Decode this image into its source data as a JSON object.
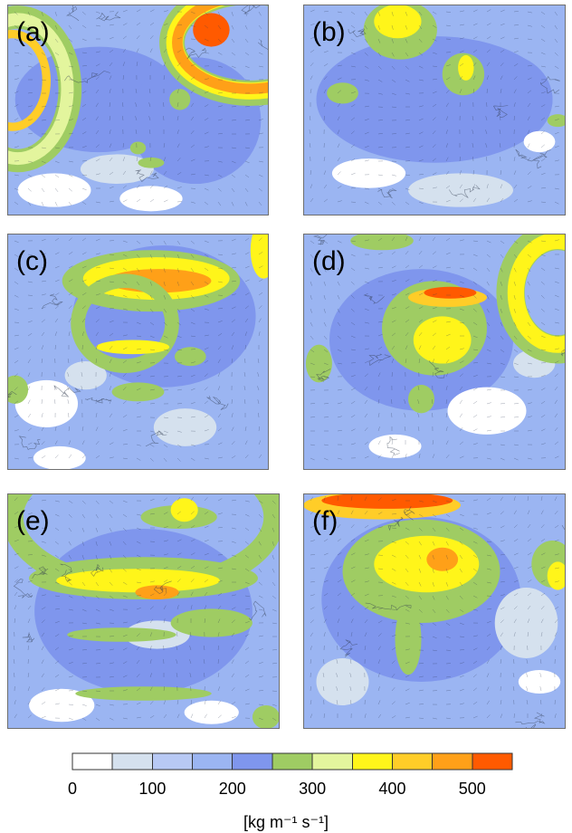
{
  "chart_data": {
    "type": "heatmap",
    "panels": [
      {
        "label": "(a)",
        "bands": [
          {
            "value": 150,
            "shape": "base"
          },
          {
            "value": 200,
            "shape": "blob",
            "cx": 0.35,
            "cy": 0.45,
            "rx": 0.32,
            "ry": 0.25
          },
          {
            "value": 225,
            "shape": "blob",
            "cx": 0.72,
            "cy": 0.55,
            "rx": 0.25,
            "ry": 0.3
          },
          {
            "value": 25,
            "shape": "blob",
            "cx": 0.18,
            "cy": 0.88,
            "rx": 0.14,
            "ry": 0.08
          },
          {
            "value": 25,
            "shape": "blob",
            "cx": 0.55,
            "cy": 0.92,
            "rx": 0.12,
            "ry": 0.06
          },
          {
            "value": 75,
            "shape": "blob",
            "cx": 0.42,
            "cy": 0.78,
            "rx": 0.14,
            "ry": 0.07
          },
          {
            "value": 275,
            "shape": "ring",
            "cx": 0.04,
            "cy": 0.4,
            "rx": 0.2,
            "ry": 0.34,
            "w": 0.11
          },
          {
            "value": 325,
            "shape": "ring",
            "cx": 0.04,
            "cy": 0.4,
            "rx": 0.19,
            "ry": 0.33,
            "w": 0.06
          },
          {
            "value": 425,
            "shape": "ring",
            "cx": 0.02,
            "cy": 0.36,
            "rx": 0.13,
            "ry": 0.22,
            "w": 0.04
          },
          {
            "value": 275,
            "shape": "ring",
            "cx": 0.93,
            "cy": 0.18,
            "rx": 0.3,
            "ry": 0.24,
            "w": 0.12
          },
          {
            "value": 375,
            "shape": "ring",
            "cx": 0.93,
            "cy": 0.18,
            "rx": 0.29,
            "ry": 0.23,
            "w": 0.08
          },
          {
            "value": 475,
            "shape": "ring",
            "cx": 0.93,
            "cy": 0.18,
            "rx": 0.28,
            "ry": 0.22,
            "w": 0.05
          },
          {
            "value": 525,
            "shape": "blob",
            "cx": 0.78,
            "cy": 0.12,
            "rx": 0.07,
            "ry": 0.08
          },
          {
            "value": 275,
            "shape": "blob",
            "cx": 0.66,
            "cy": 0.45,
            "rx": 0.04,
            "ry": 0.05
          },
          {
            "value": 275,
            "shape": "blob",
            "cx": 0.5,
            "cy": 0.68,
            "rx": 0.03,
            "ry": 0.03
          },
          {
            "value": 275,
            "shape": "blob",
            "cx": 0.55,
            "cy": 0.75,
            "rx": 0.05,
            "ry": 0.025
          }
        ]
      },
      {
        "label": "(b)",
        "bands": [
          {
            "value": 150,
            "shape": "base"
          },
          {
            "value": 200,
            "shape": "blob",
            "cx": 0.5,
            "cy": 0.45,
            "rx": 0.45,
            "ry": 0.3
          },
          {
            "value": 225,
            "shape": "blob",
            "cx": 0.75,
            "cy": 0.45,
            "rx": 0.2,
            "ry": 0.22
          },
          {
            "value": 25,
            "shape": "blob",
            "cx": 0.25,
            "cy": 0.8,
            "rx": 0.14,
            "ry": 0.07
          },
          {
            "value": 75,
            "shape": "blob",
            "cx": 0.6,
            "cy": 0.88,
            "rx": 0.2,
            "ry": 0.08
          },
          {
            "value": 25,
            "shape": "blob",
            "cx": 0.9,
            "cy": 0.65,
            "rx": 0.06,
            "ry": 0.05
          },
          {
            "value": 275,
            "shape": "blob",
            "cx": 0.37,
            "cy": 0.12,
            "rx": 0.14,
            "ry": 0.14
          },
          {
            "value": 375,
            "shape": "blob",
            "cx": 0.36,
            "cy": 0.08,
            "rx": 0.09,
            "ry": 0.08
          },
          {
            "value": 275,
            "shape": "blob",
            "cx": 0.61,
            "cy": 0.33,
            "rx": 0.08,
            "ry": 0.1
          },
          {
            "value": 375,
            "shape": "blob",
            "cx": 0.62,
            "cy": 0.3,
            "rx": 0.03,
            "ry": 0.06
          },
          {
            "value": 275,
            "shape": "blob",
            "cx": 0.15,
            "cy": 0.42,
            "rx": 0.06,
            "ry": 0.05
          },
          {
            "value": 275,
            "shape": "blob",
            "cx": 0.97,
            "cy": 0.55,
            "rx": 0.04,
            "ry": 0.03
          }
        ]
      },
      {
        "label": "(c)",
        "bands": [
          {
            "value": 175,
            "shape": "base"
          },
          {
            "value": 225,
            "shape": "blob",
            "cx": 0.6,
            "cy": 0.35,
            "rx": 0.35,
            "ry": 0.3
          },
          {
            "value": 25,
            "shape": "blob",
            "cx": 0.15,
            "cy": 0.72,
            "rx": 0.12,
            "ry": 0.1
          },
          {
            "value": 75,
            "shape": "blob",
            "cx": 0.3,
            "cy": 0.6,
            "rx": 0.08,
            "ry": 0.06
          },
          {
            "value": 25,
            "shape": "blob",
            "cx": 0.2,
            "cy": 0.95,
            "rx": 0.1,
            "ry": 0.05
          },
          {
            "value": 75,
            "shape": "blob",
            "cx": 0.68,
            "cy": 0.82,
            "rx": 0.12,
            "ry": 0.08
          },
          {
            "value": 275,
            "shape": "blob",
            "cx": 0.55,
            "cy": 0.2,
            "rx": 0.34,
            "ry": 0.13
          },
          {
            "value": 375,
            "shape": "blob",
            "cx": 0.57,
            "cy": 0.19,
            "rx": 0.28,
            "ry": 0.09
          },
          {
            "value": 475,
            "shape": "blob",
            "cx": 0.58,
            "cy": 0.2,
            "rx": 0.2,
            "ry": 0.05
          },
          {
            "value": 275,
            "shape": "ring",
            "cx": 0.45,
            "cy": 0.38,
            "rx": 0.18,
            "ry": 0.18,
            "w": 0.06
          },
          {
            "value": 375,
            "shape": "blob",
            "cx": 0.48,
            "cy": 0.48,
            "rx": 0.14,
            "ry": 0.03
          },
          {
            "value": 275,
            "shape": "blob",
            "cx": 0.7,
            "cy": 0.52,
            "rx": 0.06,
            "ry": 0.04
          },
          {
            "value": 275,
            "shape": "blob",
            "cx": 0.03,
            "cy": 0.66,
            "rx": 0.05,
            "ry": 0.06
          },
          {
            "value": 275,
            "shape": "blob",
            "cx": 0.5,
            "cy": 0.67,
            "rx": 0.1,
            "ry": 0.04
          },
          {
            "value": 375,
            "shape": "blob",
            "cx": 0.98,
            "cy": 0.07,
            "rx": 0.05,
            "ry": 0.12
          }
        ]
      },
      {
        "label": "(d)",
        "bands": [
          {
            "value": 150,
            "shape": "base"
          },
          {
            "value": 200,
            "shape": "blob",
            "cx": 0.45,
            "cy": 0.45,
            "rx": 0.35,
            "ry": 0.3
          },
          {
            "value": 25,
            "shape": "blob",
            "cx": 0.7,
            "cy": 0.75,
            "rx": 0.15,
            "ry": 0.1
          },
          {
            "value": 25,
            "shape": "blob",
            "cx": 0.35,
            "cy": 0.9,
            "rx": 0.1,
            "ry": 0.05
          },
          {
            "value": 75,
            "shape": "blob",
            "cx": 0.88,
            "cy": 0.55,
            "rx": 0.08,
            "ry": 0.06
          },
          {
            "value": 275,
            "shape": "blob",
            "cx": 0.5,
            "cy": 0.4,
            "rx": 0.2,
            "ry": 0.2
          },
          {
            "value": 375,
            "shape": "blob",
            "cx": 0.53,
            "cy": 0.45,
            "rx": 0.11,
            "ry": 0.1
          },
          {
            "value": 425,
            "shape": "blob",
            "cx": 0.55,
            "cy": 0.27,
            "rx": 0.15,
            "ry": 0.04
          },
          {
            "value": 525,
            "shape": "blob",
            "cx": 0.56,
            "cy": 0.25,
            "rx": 0.1,
            "ry": 0.025
          },
          {
            "value": 275,
            "shape": "ring",
            "cx": 0.97,
            "cy": 0.25,
            "rx": 0.18,
            "ry": 0.24,
            "w": 0.12
          },
          {
            "value": 375,
            "shape": "ring",
            "cx": 0.97,
            "cy": 0.25,
            "rx": 0.16,
            "ry": 0.22,
            "w": 0.07
          },
          {
            "value": 275,
            "shape": "blob",
            "cx": 0.06,
            "cy": 0.55,
            "rx": 0.05,
            "ry": 0.08
          },
          {
            "value": 275,
            "shape": "blob",
            "cx": 0.3,
            "cy": 0.03,
            "rx": 0.12,
            "ry": 0.04
          },
          {
            "value": 275,
            "shape": "blob",
            "cx": 0.45,
            "cy": 0.7,
            "rx": 0.05,
            "ry": 0.06
          }
        ]
      },
      {
        "label": "(e)",
        "bands": [
          {
            "value": 175,
            "shape": "base"
          },
          {
            "value": 225,
            "shape": "blob",
            "cx": 0.5,
            "cy": 0.5,
            "rx": 0.4,
            "ry": 0.35
          },
          {
            "value": 25,
            "shape": "blob",
            "cx": 0.2,
            "cy": 0.9,
            "rx": 0.12,
            "ry": 0.07
          },
          {
            "value": 75,
            "shape": "blob",
            "cx": 0.55,
            "cy": 0.6,
            "rx": 0.12,
            "ry": 0.06
          },
          {
            "value": 25,
            "shape": "blob",
            "cx": 0.75,
            "cy": 0.93,
            "rx": 0.1,
            "ry": 0.05
          },
          {
            "value": 275,
            "shape": "ring",
            "cx": 0.5,
            "cy": 0.1,
            "rx": 0.48,
            "ry": 0.3,
            "w": 0.09
          },
          {
            "value": 275,
            "shape": "blob",
            "cx": 0.5,
            "cy": 0.36,
            "rx": 0.42,
            "ry": 0.09
          },
          {
            "value": 375,
            "shape": "blob",
            "cx": 0.48,
            "cy": 0.37,
            "rx": 0.3,
            "ry": 0.05
          },
          {
            "value": 475,
            "shape": "blob",
            "cx": 0.55,
            "cy": 0.42,
            "rx": 0.08,
            "ry": 0.03
          },
          {
            "value": 275,
            "shape": "blob",
            "cx": 0.63,
            "cy": 0.1,
            "rx": 0.14,
            "ry": 0.05
          },
          {
            "value": 375,
            "shape": "blob",
            "cx": 0.65,
            "cy": 0.07,
            "rx": 0.05,
            "ry": 0.05
          },
          {
            "value": 275,
            "shape": "blob",
            "cx": 0.42,
            "cy": 0.6,
            "rx": 0.2,
            "ry": 0.03
          },
          {
            "value": 275,
            "shape": "blob",
            "cx": 0.75,
            "cy": 0.55,
            "rx": 0.15,
            "ry": 0.06
          },
          {
            "value": 275,
            "shape": "blob",
            "cx": 0.5,
            "cy": 0.85,
            "rx": 0.25,
            "ry": 0.03
          },
          {
            "value": 275,
            "shape": "blob",
            "cx": 0.95,
            "cy": 0.95,
            "rx": 0.05,
            "ry": 0.05
          }
        ]
      },
      {
        "label": "(f)",
        "bands": [
          {
            "value": 175,
            "shape": "base"
          },
          {
            "value": 225,
            "shape": "blob",
            "cx": 0.45,
            "cy": 0.45,
            "rx": 0.38,
            "ry": 0.35
          },
          {
            "value": 75,
            "shape": "blob",
            "cx": 0.85,
            "cy": 0.55,
            "rx": 0.12,
            "ry": 0.15
          },
          {
            "value": 75,
            "shape": "blob",
            "cx": 0.15,
            "cy": 0.8,
            "rx": 0.1,
            "ry": 0.1
          },
          {
            "value": 25,
            "shape": "blob",
            "cx": 0.9,
            "cy": 0.8,
            "rx": 0.08,
            "ry": 0.05
          },
          {
            "value": 275,
            "shape": "blob",
            "cx": 0.45,
            "cy": 0.33,
            "rx": 0.3,
            "ry": 0.22
          },
          {
            "value": 375,
            "shape": "blob",
            "cx": 0.47,
            "cy": 0.3,
            "rx": 0.2,
            "ry": 0.12
          },
          {
            "value": 475,
            "shape": "blob",
            "cx": 0.53,
            "cy": 0.28,
            "rx": 0.06,
            "ry": 0.05
          },
          {
            "value": 425,
            "shape": "blob",
            "cx": 0.3,
            "cy": 0.05,
            "rx": 0.3,
            "ry": 0.06
          },
          {
            "value": 525,
            "shape": "blob",
            "cx": 0.32,
            "cy": 0.03,
            "rx": 0.25,
            "ry": 0.035
          },
          {
            "value": 275,
            "shape": "blob",
            "cx": 0.4,
            "cy": 0.62,
            "rx": 0.05,
            "ry": 0.15
          },
          {
            "value": 275,
            "shape": "blob",
            "cx": 0.95,
            "cy": 0.3,
            "rx": 0.08,
            "ry": 0.1
          },
          {
            "value": 375,
            "shape": "blob",
            "cx": 0.97,
            "cy": 0.35,
            "rx": 0.04,
            "ry": 0.06
          }
        ]
      }
    ],
    "colorbar": {
      "bounds": [
        0,
        50,
        100,
        150,
        200,
        250,
        300,
        350,
        400,
        450,
        500,
        550
      ],
      "colors": [
        "#ffffff",
        "#d5e1ee",
        "#b8c9f4",
        "#9bb5f2",
        "#7f96ed",
        "#9fcc63",
        "#e3f59d",
        "#fff51a",
        "#ffcd28",
        "#ffa018",
        "#ff5a00"
      ],
      "tick_labels": [
        "0",
        "100",
        "200",
        "300",
        "400",
        "500"
      ],
      "tick_values": [
        0,
        100,
        200,
        300,
        400,
        500
      ],
      "unit_label": "[kg m⁻¹ s⁻¹]"
    }
  },
  "colors": {
    "coastline": "#2f3b4f",
    "arrow": "#2a3550",
    "contour_magenta": "#e0209a"
  }
}
